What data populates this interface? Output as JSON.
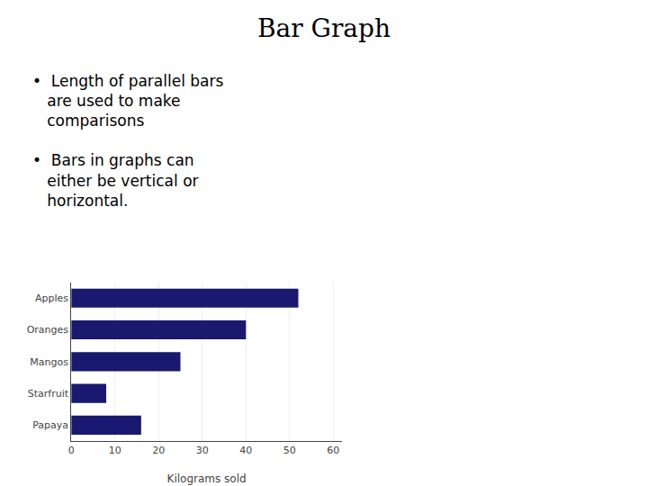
{
  "chart_data": {
    "type": "bar",
    "title": "Bar Graph",
    "annotations": [
      "•  Length of parallel bars\n   are used to make\n   comparisons",
      "•  Bars in graphs can\n   either be vertical or\n   horizontal."
    ],
    "categories": [
      "Papaya",
      "Starfruit",
      "Mangos",
      "Oranges",
      "Apples"
    ],
    "values": [
      16,
      8,
      25,
      40,
      52
    ],
    "color": "#191970",
    "orientation": "horizontal",
    "xlabel": "Kilograms sold",
    "xlim": [
      0,
      62
    ],
    "xticks": [
      0,
      10,
      20,
      30,
      40,
      50,
      60
    ],
    "grid": true
  }
}
